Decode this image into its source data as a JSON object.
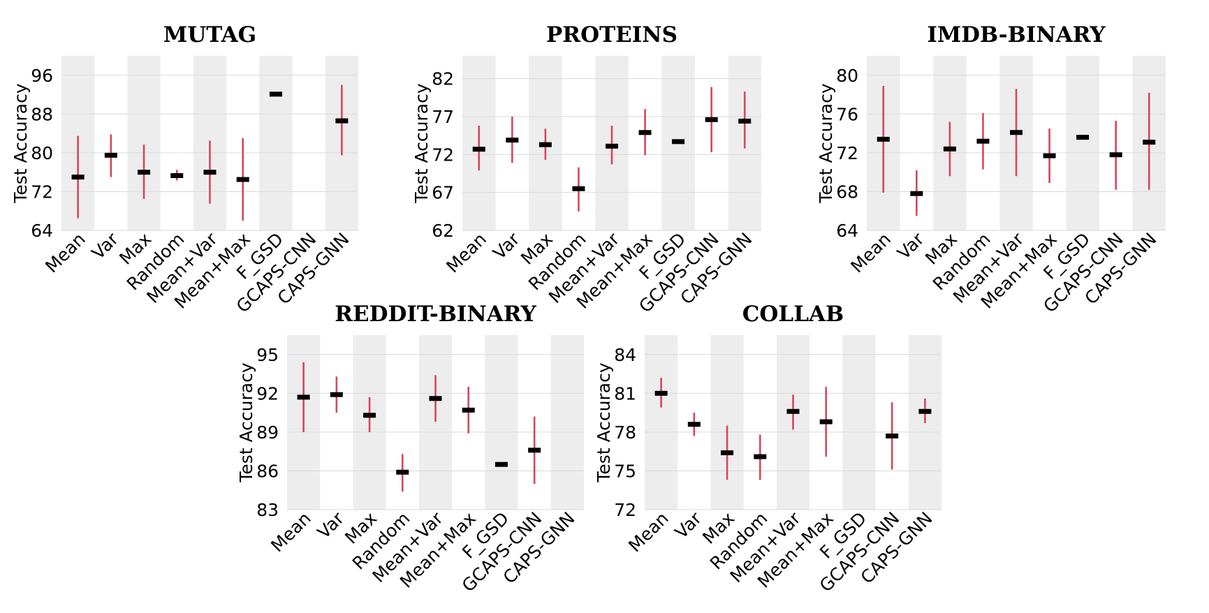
{
  "chart_data": [
    {
      "type": "errorbar",
      "title": "MUTAG",
      "xlabel": "",
      "ylabel": "Test Accuracy",
      "ylim": [
        64,
        100
      ],
      "yticks": [
        64,
        72,
        80,
        88,
        96
      ],
      "categories": [
        "Mean",
        "Var",
        "Max",
        "Random",
        "Mean+Var",
        "Mean+Max",
        "F_GSD",
        "GCAPS-CNN",
        "CAPS-GNN"
      ],
      "means": [
        75.0,
        79.5,
        76.0,
        75.3,
        76.0,
        74.5,
        92.1,
        null,
        86.6
      ],
      "lower": [
        66.5,
        75.0,
        70.5,
        74.3,
        69.5,
        66.0,
        92.1,
        null,
        79.5
      ],
      "upper": [
        83.5,
        83.8,
        81.7,
        76.5,
        82.5,
        83.0,
        92.1,
        null,
        94.0
      ]
    },
    {
      "type": "errorbar",
      "title": "PROTEINS",
      "xlabel": "",
      "ylabel": "Test Accuracy",
      "ylim": [
        62,
        85
      ],
      "yticks": [
        62,
        67,
        72,
        77,
        82
      ],
      "categories": [
        "Mean",
        "Var",
        "Max",
        "Random",
        "Mean+Var",
        "Mean+Max",
        "F_GSD",
        "GCAPS-CNN",
        "CAPS-GNN"
      ],
      "means": [
        72.7,
        73.9,
        73.3,
        67.5,
        73.1,
        74.9,
        73.7,
        76.6,
        76.4
      ],
      "lower": [
        69.9,
        70.9,
        71.3,
        64.5,
        70.7,
        71.9,
        73.7,
        72.3,
        72.8
      ],
      "upper": [
        75.8,
        77.0,
        75.4,
        70.3,
        75.8,
        78.0,
        73.7,
        80.9,
        80.3
      ]
    },
    {
      "type": "errorbar",
      "title": "IMDB-BINARY",
      "xlabel": "",
      "ylabel": "Test Accuracy",
      "ylim": [
        64,
        82
      ],
      "yticks": [
        64,
        68,
        72,
        76,
        80
      ],
      "categories": [
        "Mean",
        "Var",
        "Max",
        "Random",
        "Mean+Var",
        "Mean+Max",
        "F_GSD",
        "GCAPS-CNN",
        "CAPS-GNN"
      ],
      "means": [
        73.4,
        67.8,
        72.4,
        73.2,
        74.1,
        71.7,
        73.6,
        71.8,
        73.1
      ],
      "lower": [
        67.9,
        65.5,
        69.6,
        70.3,
        69.6,
        68.9,
        73.6,
        68.2,
        68.2
      ],
      "upper": [
        78.9,
        70.2,
        75.2,
        76.1,
        78.6,
        74.5,
        73.6,
        75.3,
        78.2
      ]
    },
    {
      "type": "errorbar",
      "title": "REDDIT-BINARY",
      "xlabel": "",
      "ylabel": "Test Accuracy",
      "ylim": [
        83,
        96.5
      ],
      "yticks": [
        83,
        86,
        89,
        92,
        95
      ],
      "categories": [
        "Mean",
        "Var",
        "Max",
        "Random",
        "Mean+Var",
        "Mean+Max",
        "F_GSD",
        "GCAPS-CNN",
        "CAPS-GNN"
      ],
      "means": [
        91.7,
        91.9,
        90.3,
        85.9,
        91.6,
        90.7,
        86.5,
        87.6,
        null
      ],
      "lower": [
        89.0,
        90.5,
        89.0,
        84.4,
        89.8,
        88.9,
        86.5,
        85.0,
        null
      ],
      "upper": [
        94.4,
        93.3,
        91.7,
        87.3,
        93.4,
        92.5,
        86.5,
        90.2,
        null
      ]
    },
    {
      "type": "errorbar",
      "title": "COLLAB",
      "xlabel": "",
      "ylabel": "Test Accuracy",
      "ylim": [
        72,
        85.5
      ],
      "yticks": [
        72,
        75,
        78,
        81,
        84
      ],
      "categories": [
        "Mean",
        "Var",
        "Max",
        "Random",
        "Mean+Var",
        "Mean+Max",
        "F_GSD",
        "GCAPS-CNN",
        "CAPS-GNN"
      ],
      "means": [
        81.0,
        78.6,
        76.4,
        76.1,
        79.6,
        78.8,
        null,
        77.7,
        79.6
      ],
      "lower": [
        79.9,
        77.7,
        74.3,
        74.3,
        78.2,
        76.1,
        null,
        75.1,
        78.7
      ],
      "upper": [
        82.2,
        79.5,
        78.5,
        77.8,
        80.9,
        81.5,
        null,
        80.3,
        80.6
      ]
    }
  ],
  "colors": {
    "errorbar": "#d6465a",
    "mean_marker": "#000000",
    "band": "#ededed",
    "grid": "#d9d9d9"
  }
}
